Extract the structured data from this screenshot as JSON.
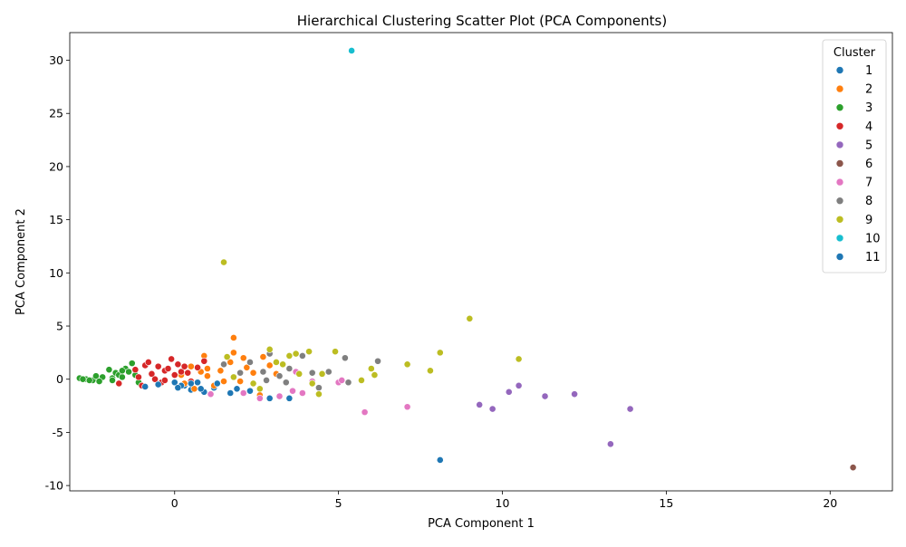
{
  "chart_data": {
    "type": "scatter",
    "title": "Hierarchical Clustering Scatter Plot (PCA Components)",
    "xlabel": "PCA Component 1",
    "ylabel": "PCA Component 2",
    "xlim": [
      -3.2,
      21.9
    ],
    "ylim": [
      -10.5,
      32.6
    ],
    "xticks": [
      0,
      5,
      10,
      15,
      20
    ],
    "yticks": [
      -10,
      -5,
      0,
      5,
      10,
      15,
      20,
      25,
      30
    ],
    "grid": false,
    "legend": {
      "title": "Cluster",
      "placement": "top-right"
    },
    "series": [
      {
        "name": "1",
        "color": "#1f77b4",
        "points": [
          [
            0.5,
            -1.0
          ],
          [
            0.9,
            -1.2
          ],
          [
            1.2,
            -0.8
          ],
          [
            1.7,
            -1.3
          ],
          [
            2.9,
            -1.8
          ],
          [
            3.5,
            -1.8
          ],
          [
            0.3,
            -0.6
          ],
          [
            1.9,
            -0.9
          ],
          [
            2.3,
            -1.1
          ],
          [
            0.7,
            -0.3
          ],
          [
            8.1,
            -7.6
          ]
        ]
      },
      {
        "name": "2",
        "color": "#ff7f0e",
        "points": [
          [
            0.2,
            0.4
          ],
          [
            0.5,
            1.2
          ],
          [
            0.9,
            2.2
          ],
          [
            1.0,
            0.3
          ],
          [
            1.2,
            -0.6
          ],
          [
            1.4,
            0.8
          ],
          [
            1.7,
            1.6
          ],
          [
            1.8,
            3.9
          ],
          [
            1.8,
            2.5
          ],
          [
            2.0,
            -0.2
          ],
          [
            2.1,
            2.0
          ],
          [
            2.4,
            0.6
          ],
          [
            2.6,
            -1.5
          ],
          [
            2.7,
            2.1
          ],
          [
            2.9,
            1.3
          ],
          [
            3.1,
            0.5
          ],
          [
            0.6,
            -0.9
          ],
          [
            1.0,
            1.0
          ],
          [
            0.3,
            -0.4
          ],
          [
            1.5,
            -0.2
          ],
          [
            2.2,
            1.1
          ],
          [
            0.8,
            0.7
          ]
        ]
      },
      {
        "name": "3",
        "color": "#2ca02c",
        "points": [
          [
            -2.9,
            0.1
          ],
          [
            -2.7,
            0.0
          ],
          [
            -2.5,
            -0.1
          ],
          [
            -2.4,
            0.3
          ],
          [
            -2.2,
            0.2
          ],
          [
            -2.0,
            0.9
          ],
          [
            -1.9,
            0.1
          ],
          [
            -1.8,
            0.6
          ],
          [
            -1.7,
            0.4
          ],
          [
            -1.6,
            0.2
          ],
          [
            -1.5,
            1.0
          ],
          [
            -1.4,
            0.7
          ],
          [
            -1.3,
            1.5
          ],
          [
            -1.2,
            0.4
          ],
          [
            -1.1,
            -0.3
          ],
          [
            -2.3,
            -0.2
          ],
          [
            -2.8,
            0.0
          ],
          [
            -1.9,
            -0.1
          ],
          [
            -2.6,
            -0.1
          ],
          [
            -1.6,
            0.8
          ]
        ]
      },
      {
        "name": "4",
        "color": "#d62728",
        "points": [
          [
            -1.7,
            -0.4
          ],
          [
            -1.2,
            0.9
          ],
          [
            -1.0,
            -0.6
          ],
          [
            -0.9,
            1.3
          ],
          [
            -0.8,
            1.6
          ],
          [
            -0.7,
            0.5
          ],
          [
            -0.5,
            1.2
          ],
          [
            -0.4,
            -0.3
          ],
          [
            -0.3,
            0.8
          ],
          [
            -0.2,
            1.0
          ],
          [
            -0.1,
            1.9
          ],
          [
            0.0,
            0.4
          ],
          [
            0.1,
            1.4
          ],
          [
            0.2,
            0.7
          ],
          [
            0.3,
            1.2
          ],
          [
            0.5,
            -0.2
          ],
          [
            0.7,
            1.1
          ],
          [
            -0.6,
            0.0
          ],
          [
            -1.1,
            0.2
          ],
          [
            0.4,
            0.6
          ],
          [
            -0.3,
            -0.1
          ],
          [
            0.9,
            1.7
          ]
        ]
      },
      {
        "name": "5",
        "color": "#9467bd",
        "points": [
          [
            9.3,
            -2.4
          ],
          [
            9.7,
            -2.8
          ],
          [
            10.2,
            -1.2
          ],
          [
            10.5,
            -0.6
          ],
          [
            11.3,
            -1.6
          ],
          [
            12.2,
            -1.4
          ],
          [
            13.3,
            -6.1
          ],
          [
            13.9,
            -2.8
          ]
        ]
      },
      {
        "name": "6",
        "color": "#8c564b",
        "points": [
          [
            20.7,
            -8.3
          ]
        ]
      },
      {
        "name": "7",
        "color": "#e377c2",
        "points": [
          [
            1.1,
            -1.4
          ],
          [
            2.1,
            -1.3
          ],
          [
            2.6,
            -1.8
          ],
          [
            3.2,
            -1.6
          ],
          [
            3.6,
            -1.1
          ],
          [
            3.9,
            -1.3
          ],
          [
            4.2,
            -0.2
          ],
          [
            5.0,
            -0.3
          ],
          [
            5.1,
            -0.1
          ],
          [
            5.8,
            -3.1
          ],
          [
            7.1,
            -2.6
          ],
          [
            3.7,
            0.7
          ]
        ]
      },
      {
        "name": "8",
        "color": "#7f7f7f",
        "points": [
          [
            1.5,
            1.4
          ],
          [
            2.0,
            0.6
          ],
          [
            2.3,
            1.6
          ],
          [
            2.7,
            0.7
          ],
          [
            2.9,
            2.4
          ],
          [
            3.2,
            0.3
          ],
          [
            3.5,
            1.0
          ],
          [
            3.9,
            2.2
          ],
          [
            4.2,
            0.6
          ],
          [
            4.4,
            -0.8
          ],
          [
            4.7,
            0.7
          ],
          [
            5.2,
            2.0
          ],
          [
            5.3,
            -0.3
          ],
          [
            6.2,
            1.7
          ],
          [
            2.8,
            -0.1
          ],
          [
            3.4,
            -0.3
          ]
        ]
      },
      {
        "name": "9",
        "color": "#bcbd22",
        "points": [
          [
            1.5,
            11.0
          ],
          [
            1.6,
            2.1
          ],
          [
            1.8,
            0.2
          ],
          [
            2.4,
            -0.4
          ],
          [
            2.9,
            2.8
          ],
          [
            3.1,
            1.6
          ],
          [
            3.3,
            1.4
          ],
          [
            3.5,
            2.2
          ],
          [
            3.7,
            2.4
          ],
          [
            3.8,
            0.5
          ],
          [
            4.1,
            2.6
          ],
          [
            4.2,
            -0.4
          ],
          [
            4.4,
            -1.4
          ],
          [
            4.5,
            0.5
          ],
          [
            4.9,
            2.6
          ],
          [
            5.7,
            -0.1
          ],
          [
            6.0,
            1.0
          ],
          [
            6.1,
            0.4
          ],
          [
            7.1,
            1.4
          ],
          [
            7.8,
            0.8
          ],
          [
            8.1,
            2.5
          ],
          [
            9.0,
            5.7
          ],
          [
            10.5,
            1.9
          ],
          [
            2.6,
            -0.9
          ]
        ]
      },
      {
        "name": "10",
        "color": "#17becf",
        "points": [
          [
            5.4,
            30.9
          ]
        ]
      },
      {
        "name": "11",
        "color": "#1f77b4",
        "points": [
          [
            0.0,
            -0.3
          ],
          [
            0.2,
            -0.6
          ],
          [
            0.5,
            -0.4
          ],
          [
            -0.5,
            -0.5
          ],
          [
            -0.9,
            -0.7
          ],
          [
            0.8,
            -0.9
          ],
          [
            1.3,
            -0.4
          ],
          [
            0.1,
            -0.8
          ]
        ]
      }
    ]
  }
}
